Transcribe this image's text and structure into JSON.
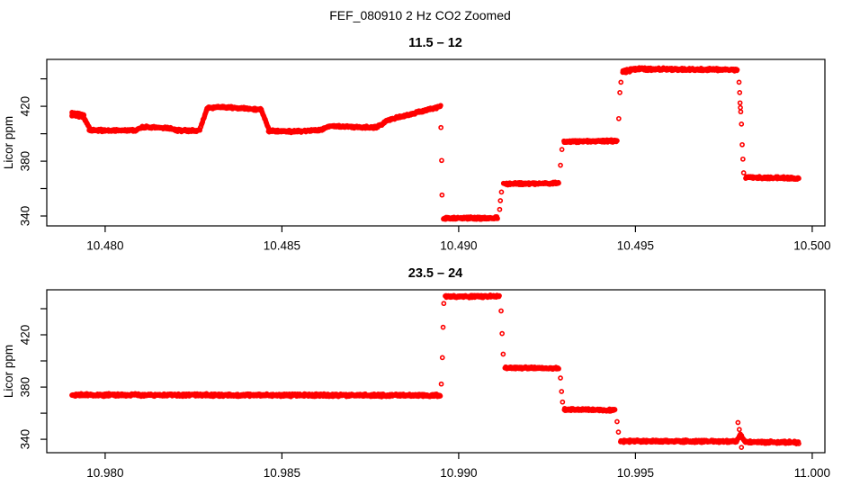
{
  "header": {
    "title": "FEF_080910  2 Hz CO2 Zoomed"
  },
  "chart_data": [
    {
      "type": "scatter",
      "title": "11.5 – 12",
      "xlabel": "",
      "ylabel": "Licor ppm",
      "marker": "open-circle",
      "color": "#ff0000",
      "grid": false,
      "legend": null,
      "xlim": [
        10.47835,
        10.50036
      ],
      "ylim": [
        332.8,
        454.2
      ],
      "x_ticks": [
        10.48,
        10.485,
        10.49,
        10.495,
        10.5
      ],
      "x_tick_labels": [
        "10.480",
        "10.485",
        "10.490",
        "10.495",
        "10.500"
      ],
      "y_ticks_labeled": [
        340,
        380,
        420
      ],
      "y_tick_labels": [
        "340",
        "380",
        "420"
      ],
      "y_ticks_minor": [
        360,
        400,
        440
      ],
      "segments": [
        {
          "x0": 10.47906,
          "x1": 10.4794,
          "y0": 414.5,
          "y1": 413.0,
          "jitter": 1.6,
          "dx": 4.5e-06
        },
        {
          "x0": 10.4794,
          "x1": 10.47955,
          "y0": 411.5,
          "y1": 404.5,
          "jitter": 0.7
        },
        {
          "x0": 10.47955,
          "x1": 10.48085,
          "y0": 402.4,
          "y1": 402.4,
          "jitter": 1.1
        },
        {
          "x0": 10.48085,
          "x1": 10.48105,
          "y0": 402.4,
          "y1": 404.8,
          "jitter": 0.7
        },
        {
          "x0": 10.48105,
          "x1": 10.48185,
          "y0": 404.8,
          "y1": 404.0,
          "jitter": 1.0
        },
        {
          "x0": 10.48185,
          "x1": 10.48205,
          "y0": 404.0,
          "y1": 402.2,
          "jitter": 0.7
        },
        {
          "x0": 10.48205,
          "x1": 10.48268,
          "y0": 402.3,
          "y1": 402.5,
          "jitter": 1.0
        },
        {
          "x0": 10.48268,
          "x1": 10.48288,
          "y0": 403.0,
          "y1": 418.0,
          "jitter": 0.7
        },
        {
          "x0": 10.48288,
          "x1": 10.48335,
          "y0": 418.8,
          "y1": 419.4,
          "jitter": 1.0
        },
        {
          "x0": 10.48335,
          "x1": 10.48442,
          "y0": 419.4,
          "y1": 417.6,
          "jitter": 1.0
        },
        {
          "x0": 10.48442,
          "x1": 10.48462,
          "y0": 417.0,
          "y1": 404.0,
          "jitter": 0.7
        },
        {
          "x0": 10.48462,
          "x1": 10.48535,
          "y0": 402.2,
          "y1": 401.6,
          "jitter": 1.0
        },
        {
          "x0": 10.48535,
          "x1": 10.48612,
          "y0": 401.6,
          "y1": 402.9,
          "jitter": 1.0
        },
        {
          "x0": 10.48612,
          "x1": 10.48632,
          "y0": 402.9,
          "y1": 405.5,
          "jitter": 0.7
        },
        {
          "x0": 10.48632,
          "x1": 10.48768,
          "y0": 405.5,
          "y1": 404.6,
          "jitter": 1.0
        },
        {
          "x0": 10.48768,
          "x1": 10.488,
          "y0": 404.6,
          "y1": 410.0,
          "jitter": 0.9
        },
        {
          "x0": 10.488,
          "x1": 10.48949,
          "y0": 410.2,
          "y1": 419.8,
          "jitter": 1.0
        },
        {
          "x0": 10.48957,
          "x1": 10.4911,
          "y0": 338.3,
          "y1": 338.6,
          "jitter": 1.0
        },
        {
          "x0": 10.49127,
          "x1": 10.49283,
          "y0": 363.6,
          "y1": 363.9,
          "jitter": 1.0
        },
        {
          "x0": 10.49298,
          "x1": 10.49448,
          "y0": 394.3,
          "y1": 394.7,
          "jitter": 1.0
        },
        {
          "x0": 10.49464,
          "x1": 10.495,
          "y0": 445.5,
          "y1": 447.2,
          "jitter": 1.4,
          "dx": 7e-06
        },
        {
          "x0": 10.495,
          "x1": 10.49788,
          "y0": 447.2,
          "y1": 446.6,
          "jitter": 1.1
        },
        {
          "x0": 10.49812,
          "x1": 10.49962,
          "y0": 368.2,
          "y1": 367.5,
          "jitter": 1.0
        }
      ],
      "transition_points": [
        [
          10.4895,
          404.5
        ],
        [
          10.48952,
          380.5
        ],
        [
          10.48953,
          355.3
        ],
        [
          10.49116,
          344.8
        ],
        [
          10.49118,
          351.2
        ],
        [
          10.49121,
          357.5
        ],
        [
          10.49288,
          377.0
        ],
        [
          10.49292,
          388.5
        ],
        [
          10.49453,
          411.0
        ],
        [
          10.49456,
          430.0
        ],
        [
          10.49459,
          437.5
        ],
        [
          10.49793,
          437.5
        ],
        [
          10.49795,
          430.0
        ],
        [
          10.49796,
          422.5
        ],
        [
          10.49797,
          419.0
        ],
        [
          10.49798,
          416.0
        ],
        [
          10.498,
          407.0
        ],
        [
          10.49802,
          392.0
        ],
        [
          10.49804,
          381.5
        ],
        [
          10.49806,
          371.5
        ]
      ]
    },
    {
      "type": "scatter",
      "title": "23.5 – 24",
      "xlabel": "",
      "ylabel": "Licor ppm",
      "marker": "open-circle",
      "color": "#ff0000",
      "grid": false,
      "legend": null,
      "xlim": [
        10.97835,
        11.00036
      ],
      "ylim": [
        329.7,
        454.5
      ],
      "x_ticks": [
        10.98,
        10.985,
        10.99,
        10.995,
        11.0
      ],
      "x_tick_labels": [
        "10.980",
        "10.985",
        "10.990",
        "10.995",
        "11.000"
      ],
      "y_ticks_labeled": [
        340,
        380,
        420
      ],
      "y_tick_labels": [
        "340",
        "380",
        "420"
      ],
      "y_ticks_minor": [
        360,
        400,
        440
      ],
      "segments": [
        {
          "x0": 10.97906,
          "x1": 10.98948,
          "y0": 374.0,
          "y1": 373.6,
          "jitter": 1.2
        },
        {
          "x0": 10.98962,
          "x1": 10.99115,
          "y0": 449.2,
          "y1": 449.6,
          "jitter": 1.1
        },
        {
          "x0": 10.99131,
          "x1": 10.99283,
          "y0": 394.8,
          "y1": 394.3,
          "jitter": 1.0
        },
        {
          "x0": 10.99299,
          "x1": 10.99442,
          "y0": 362.8,
          "y1": 362.3,
          "jitter": 1.0
        },
        {
          "x0": 10.99458,
          "x1": 10.99785,
          "y0": 338.6,
          "y1": 338.4,
          "jitter": 1.1
        },
        {
          "x0": 10.99786,
          "x1": 10.99797,
          "y0": 338.5,
          "y1": 343.5,
          "jitter": 0.9
        },
        {
          "x0": 10.99797,
          "x1": 10.9981,
          "y0": 343.5,
          "y1": 338.2,
          "jitter": 0.9
        },
        {
          "x0": 10.9981,
          "x1": 10.99962,
          "y0": 337.9,
          "y1": 337.6,
          "jitter": 1.1
        }
      ],
      "transition_points": [
        [
          10.98951,
          382.3
        ],
        [
          10.98954,
          402.5
        ],
        [
          10.98956,
          425.8
        ],
        [
          10.98958,
          444.0
        ],
        [
          10.9912,
          438.3
        ],
        [
          10.99123,
          421.0
        ],
        [
          10.99126,
          405.2
        ],
        [
          10.99288,
          386.9
        ],
        [
          10.99291,
          376.6
        ],
        [
          10.99294,
          368.5
        ],
        [
          10.99448,
          353.5
        ],
        [
          10.99452,
          345.5
        ],
        [
          10.9979,
          352.8
        ],
        [
          10.99794,
          347.5
        ],
        [
          10.998,
          333.8
        ]
      ]
    }
  ]
}
